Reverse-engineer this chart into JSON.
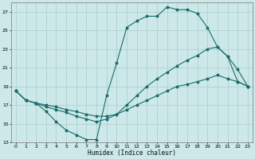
{
  "xlabel": "Humidex (Indice chaleur)",
  "bg_color": "#cce8e8",
  "grid_color": "#aacccc",
  "line_color": "#1a6b6b",
  "xlim": [
    -0.5,
    23.5
  ],
  "ylim": [
    13,
    28
  ],
  "xticks": [
    0,
    1,
    2,
    3,
    4,
    5,
    6,
    7,
    8,
    9,
    10,
    11,
    12,
    13,
    14,
    15,
    16,
    17,
    18,
    19,
    20,
    21,
    22,
    23
  ],
  "yticks": [
    13,
    15,
    17,
    19,
    21,
    23,
    25,
    27
  ],
  "line1_x": [
    0,
    1,
    2,
    3,
    4,
    5,
    6,
    7,
    8,
    9,
    10,
    11,
    12,
    13,
    14,
    15,
    16,
    17,
    18,
    19,
    20,
    21,
    22,
    23
  ],
  "line1_y": [
    18.5,
    17.5,
    17.2,
    16.3,
    15.2,
    14.3,
    13.8,
    13.3,
    13.3,
    18.0,
    21.5,
    25.3,
    26.0,
    26.5,
    26.5,
    27.5,
    27.2,
    27.2,
    26.8,
    25.3,
    23.2,
    22.2,
    19.5,
    19.0
  ],
  "line2_x": [
    0,
    1,
    2,
    3,
    4,
    5,
    6,
    7,
    8,
    9,
    10,
    11,
    12,
    13,
    14,
    15,
    16,
    17,
    18,
    19,
    20,
    21,
    22,
    23
  ],
  "line2_y": [
    18.5,
    17.5,
    17.2,
    16.8,
    16.5,
    16.2,
    15.8,
    15.5,
    15.2,
    15.5,
    16.0,
    17.0,
    18.0,
    19.0,
    19.8,
    20.5,
    21.2,
    21.8,
    22.3,
    23.0,
    23.2,
    22.2,
    20.8,
    19.0
  ],
  "line3_x": [
    0,
    1,
    2,
    3,
    4,
    5,
    6,
    7,
    8,
    9,
    10,
    11,
    12,
    13,
    14,
    15,
    16,
    17,
    18,
    19,
    20,
    21,
    22,
    23
  ],
  "line3_y": [
    18.5,
    17.5,
    17.2,
    17.0,
    16.8,
    16.5,
    16.3,
    16.0,
    15.8,
    15.8,
    16.0,
    16.5,
    17.0,
    17.5,
    18.0,
    18.5,
    19.0,
    19.2,
    19.5,
    19.8,
    20.2,
    19.8,
    19.5,
    19.0
  ]
}
